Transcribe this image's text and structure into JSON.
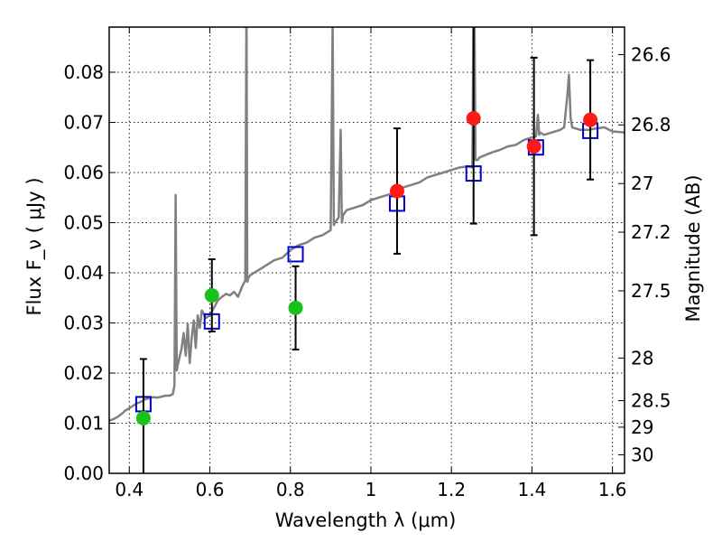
{
  "chart_data": {
    "type": "scatter",
    "xlabel": "Wavelength  λ (μm)",
    "ylabel_left": "Flux  F_ν  ( μJy )",
    "ylabel_right": "Magnitude (AB)",
    "xlim": [
      0.35,
      1.63
    ],
    "ylim": [
      0.0,
      0.089
    ],
    "grid": true,
    "x_ticks": [
      0.4,
      0.6,
      0.8,
      1.0,
      1.2,
      1.4,
      1.6
    ],
    "x_tick_labels": [
      "0.4",
      "0.6",
      "0.8",
      "1",
      "1.2",
      "1.4",
      "1.6"
    ],
    "y_ticks": [
      0.0,
      0.01,
      0.02,
      0.03,
      0.04,
      0.05,
      0.06,
      0.07,
      0.08
    ],
    "y_tick_labels": [
      "0.00",
      "0.01",
      "0.02",
      "0.03",
      "0.04",
      "0.05",
      "0.06",
      "0.07",
      "0.08"
    ],
    "right_ticks": [
      {
        "label": "26.6",
        "flux": 0.0835
      },
      {
        "label": "26.8",
        "flux": 0.0695
      },
      {
        "label": "27",
        "flux": 0.0578
      },
      {
        "label": "27.2",
        "flux": 0.0481
      },
      {
        "label": "27.5",
        "flux": 0.0364
      },
      {
        "label": "28",
        "flux": 0.023
      },
      {
        "label": "28.5",
        "flux": 0.0145
      },
      {
        "label": "29",
        "flux": 0.0092
      },
      {
        "label": "30",
        "flux": 0.0037
      }
    ],
    "series": [
      {
        "name": "model spectrum",
        "style": "line",
        "color": "#808080",
        "x": [
          0.35,
          0.36,
          0.37,
          0.38,
          0.39,
          0.4,
          0.41,
          0.42,
          0.43,
          0.44,
          0.45,
          0.46,
          0.47,
          0.48,
          0.49,
          0.5,
          0.508,
          0.512,
          0.515,
          0.518,
          0.52,
          0.53,
          0.535,
          0.54,
          0.545,
          0.55,
          0.555,
          0.56,
          0.565,
          0.57,
          0.575,
          0.58,
          0.59,
          0.6,
          0.61,
          0.62,
          0.63,
          0.64,
          0.65,
          0.66,
          0.67,
          0.68,
          0.688,
          0.691,
          0.693,
          0.696,
          0.7,
          0.72,
          0.74,
          0.76,
          0.78,
          0.8,
          0.82,
          0.84,
          0.86,
          0.88,
          0.9,
          0.905,
          0.908,
          0.911,
          0.915,
          0.92,
          0.925,
          0.928,
          0.931,
          0.935,
          0.94,
          0.96,
          0.98,
          1.0,
          1.02,
          1.04,
          1.06,
          1.08,
          1.1,
          1.12,
          1.14,
          1.16,
          1.18,
          1.2,
          1.22,
          1.24,
          1.252,
          1.256,
          1.26,
          1.265,
          1.27,
          1.3,
          1.32,
          1.34,
          1.36,
          1.38,
          1.4,
          1.41,
          1.415,
          1.418,
          1.42,
          1.43,
          1.45,
          1.47,
          1.48,
          1.488,
          1.492,
          1.496,
          1.5,
          1.52,
          1.54,
          1.56,
          1.58,
          1.6,
          1.63
        ],
        "y": [
          0.0105,
          0.0108,
          0.0112,
          0.0118,
          0.0125,
          0.013,
          0.0135,
          0.014,
          0.0143,
          0.0148,
          0.015,
          0.0152,
          0.0151,
          0.0153,
          0.0155,
          0.0155,
          0.0158,
          0.0175,
          0.0555,
          0.0205,
          0.0215,
          0.025,
          0.028,
          0.0235,
          0.0298,
          0.022,
          0.027,
          0.0305,
          0.025,
          0.0315,
          0.029,
          0.0325,
          0.031,
          0.0315,
          0.033,
          0.0345,
          0.0352,
          0.0358,
          0.0355,
          0.0362,
          0.0352,
          0.0372,
          0.0385,
          0.095,
          0.0382,
          0.039,
          0.0395,
          0.0405,
          0.0415,
          0.0425,
          0.043,
          0.0445,
          0.0455,
          0.046,
          0.047,
          0.0475,
          0.0485,
          0.0905,
          0.0495,
          0.05,
          0.0505,
          0.051,
          0.0685,
          0.05,
          0.0515,
          0.052,
          0.0525,
          0.053,
          0.0535,
          0.0545,
          0.055,
          0.0555,
          0.056,
          0.057,
          0.0575,
          0.058,
          0.059,
          0.0595,
          0.06,
          0.0605,
          0.061,
          0.0612,
          0.061,
          0.104,
          0.0625,
          0.0625,
          0.063,
          0.064,
          0.0645,
          0.0652,
          0.0655,
          0.0665,
          0.067,
          0.0672,
          0.0715,
          0.0675,
          0.068,
          0.0675,
          0.068,
          0.0685,
          0.069,
          0.0755,
          0.0795,
          0.071,
          0.069,
          0.0685,
          0.0685,
          0.0688,
          0.069,
          0.0682,
          0.068
        ]
      },
      {
        "name": "model photometry",
        "style": "open-square",
        "color": "#0000cc",
        "x": [
          0.435,
          0.605,
          0.813,
          1.065,
          1.255,
          1.41,
          1.545
        ],
        "y": [
          0.0138,
          0.0303,
          0.0437,
          0.0538,
          0.0598,
          0.065,
          0.0683
        ]
      },
      {
        "name": "observed flux (green)",
        "style": "filled-circle",
        "color": "#19c219",
        "x": [
          0.435,
          0.605,
          0.813
        ],
        "y": [
          0.011,
          0.0355,
          0.033
        ],
        "yerr": [
          0.0118,
          0.0072,
          0.0083
        ]
      },
      {
        "name": "observed flux (red)",
        "style": "filled-circle",
        "color": "#ff1a1a",
        "x": [
          1.065,
          1.255,
          1.405,
          1.545
        ],
        "y": [
          0.0563,
          0.0708,
          0.0652,
          0.0705
        ],
        "yerr": [
          0.0125,
          0.021,
          0.0177,
          0.0119
        ]
      }
    ]
  }
}
